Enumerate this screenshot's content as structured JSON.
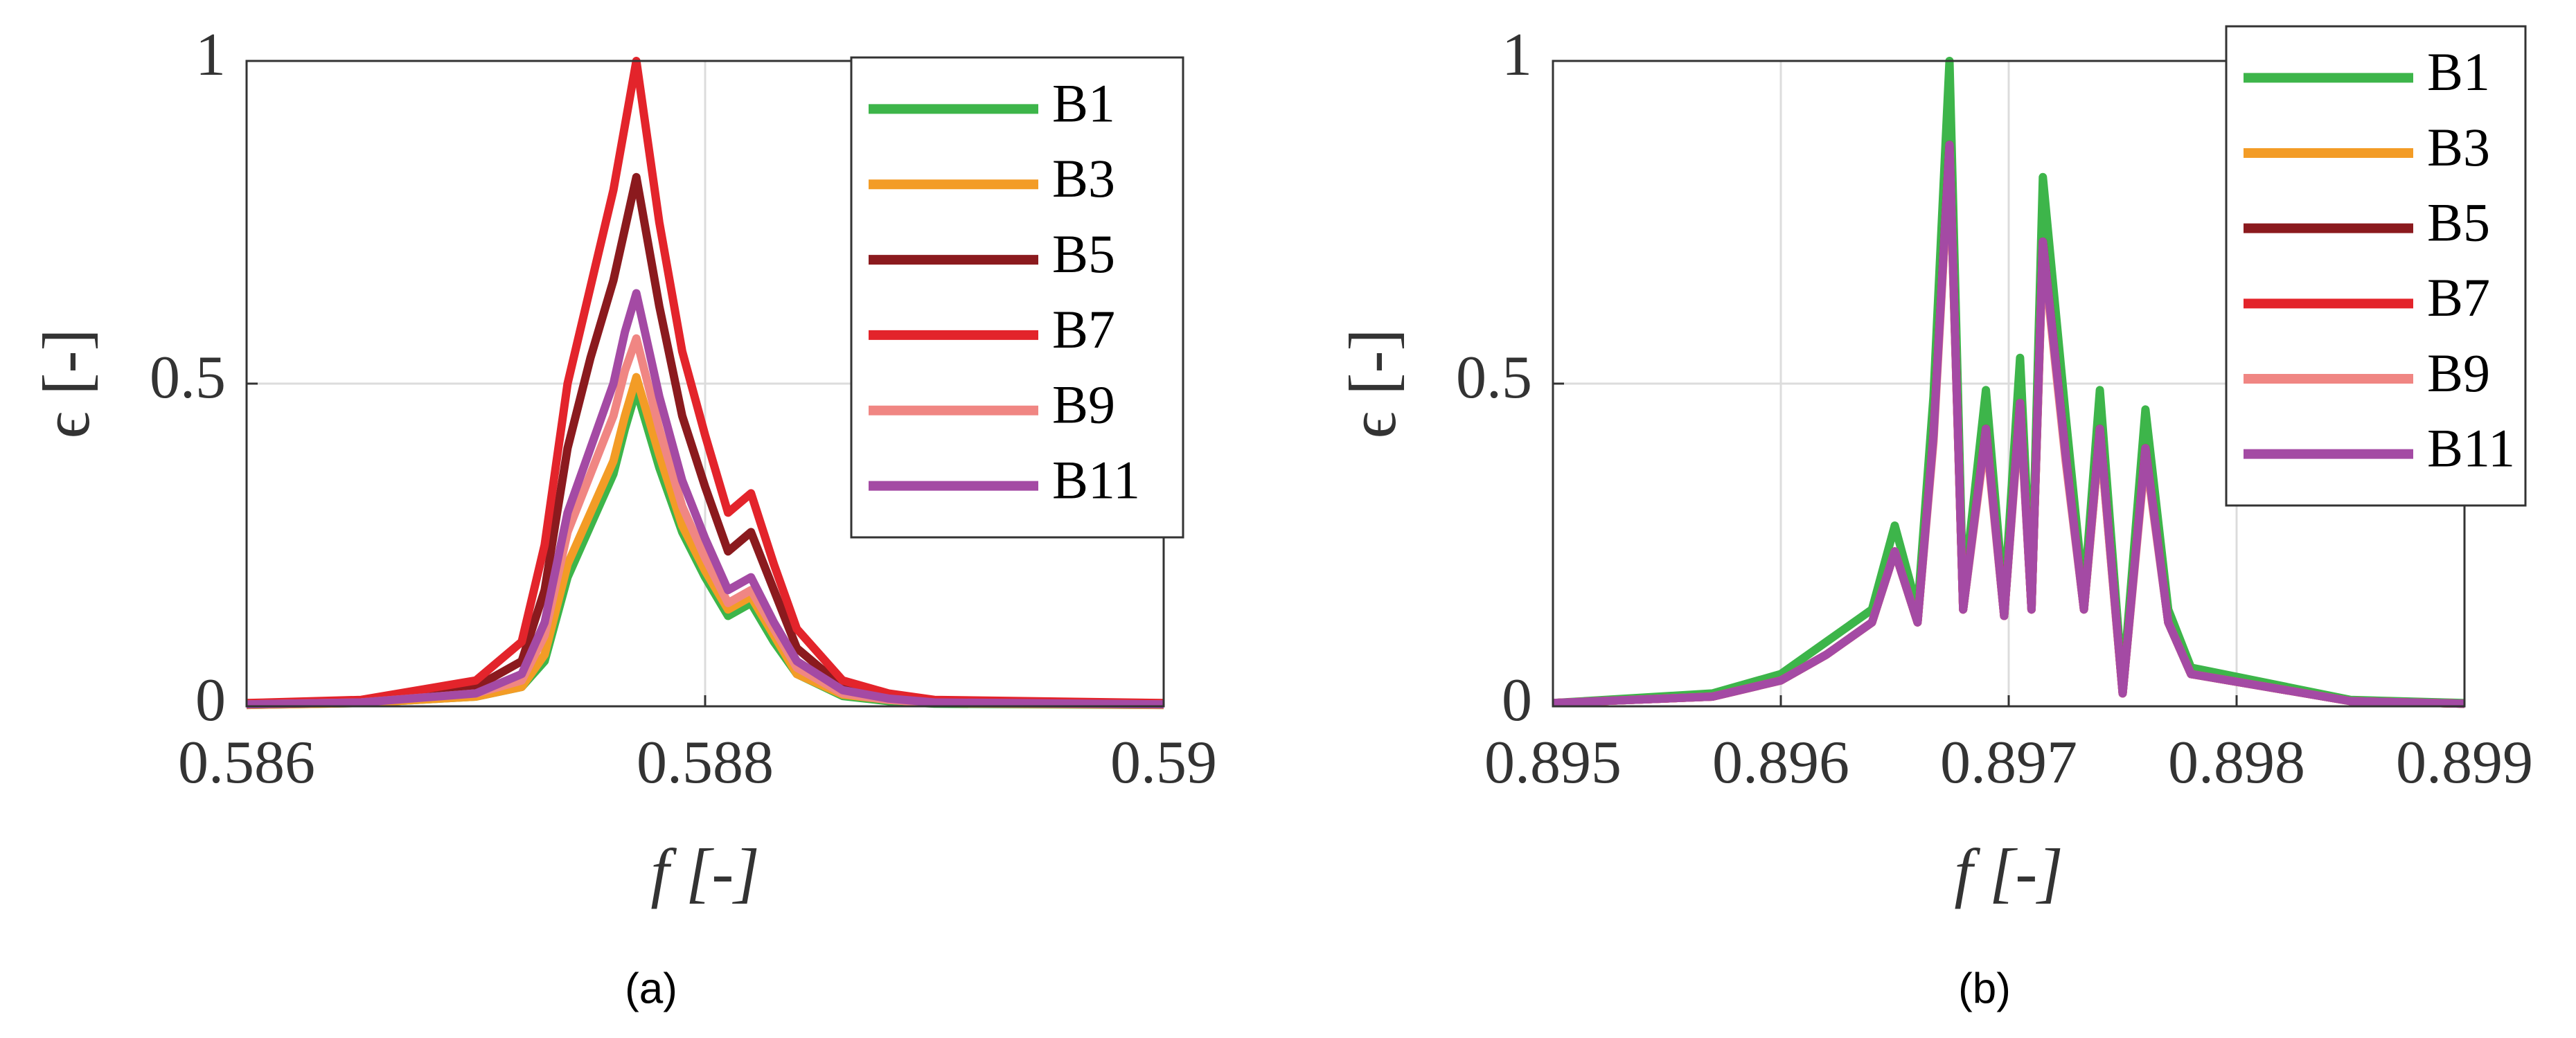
{
  "chart_data": [
    {
      "type": "line",
      "caption": "(a)",
      "xlabel": "f [-]",
      "ylabel": "ϵ [-]",
      "xlim": [
        0.586,
        0.59
      ],
      "xticks": [
        0.586,
        0.588,
        0.59
      ],
      "ylim": [
        0,
        1
      ],
      "yticks": [
        0,
        0.5,
        1
      ],
      "grid": true,
      "legend": "upper right",
      "x": [
        0.586,
        0.5865,
        0.587,
        0.5872,
        0.5873,
        0.5874,
        0.5875,
        0.5876,
        0.58765,
        0.5877,
        0.5878,
        0.5879,
        0.588,
        0.5881,
        0.5882,
        0.5883,
        0.5884,
        0.5886,
        0.5888,
        0.589,
        0.59
      ],
      "series": [
        {
          "name": "B1",
          "color": "#3db54a",
          "values": [
            0.002,
            0.005,
            0.015,
            0.03,
            0.07,
            0.2,
            0.28,
            0.36,
            0.43,
            0.49,
            0.37,
            0.27,
            0.2,
            0.14,
            0.16,
            0.1,
            0.05,
            0.016,
            0.008,
            0.004,
            0.002
          ]
        },
        {
          "name": "B3",
          "color": "#f39c26",
          "values": [
            0.002,
            0.005,
            0.015,
            0.03,
            0.08,
            0.22,
            0.3,
            0.38,
            0.45,
            0.51,
            0.39,
            0.28,
            0.21,
            0.15,
            0.17,
            0.11,
            0.05,
            0.018,
            0.01,
            0.005,
            0.002
          ]
        },
        {
          "name": "B5",
          "color": "#8b1a1e",
          "values": [
            0.004,
            0.008,
            0.03,
            0.07,
            0.18,
            0.4,
            0.54,
            0.66,
            0.74,
            0.82,
            0.62,
            0.45,
            0.34,
            0.24,
            0.27,
            0.18,
            0.09,
            0.03,
            0.015,
            0.008,
            0.004
          ]
        },
        {
          "name": "B7",
          "color": "#e3242b",
          "values": [
            0.005,
            0.01,
            0.04,
            0.1,
            0.25,
            0.5,
            0.65,
            0.8,
            0.9,
            1.0,
            0.75,
            0.55,
            0.42,
            0.3,
            0.33,
            0.22,
            0.12,
            0.04,
            0.02,
            0.01,
            0.005
          ]
        },
        {
          "name": "B9",
          "color": "#f08683",
          "values": [
            0.003,
            0.006,
            0.02,
            0.04,
            0.11,
            0.27,
            0.36,
            0.45,
            0.52,
            0.57,
            0.43,
            0.31,
            0.23,
            0.16,
            0.18,
            0.12,
            0.06,
            0.02,
            0.01,
            0.005,
            0.003
          ]
        },
        {
          "name": "B11",
          "color": "#a44aa4",
          "values": [
            0.003,
            0.006,
            0.02,
            0.05,
            0.13,
            0.3,
            0.4,
            0.5,
            0.58,
            0.64,
            0.48,
            0.35,
            0.26,
            0.18,
            0.2,
            0.13,
            0.07,
            0.025,
            0.012,
            0.006,
            0.003
          ]
        }
      ]
    },
    {
      "type": "line",
      "caption": "(b)",
      "xlabel": "f [-]",
      "ylabel": "ϵ [-]",
      "xlim": [
        0.895,
        0.899
      ],
      "xticks": [
        0.895,
        0.896,
        0.897,
        0.898,
        0.899
      ],
      "ylim": [
        0,
        1
      ],
      "yticks": [
        0,
        0.5,
        1
      ],
      "grid": true,
      "legend": "upper right",
      "x": [
        0.895,
        0.8957,
        0.896,
        0.8962,
        0.8964,
        0.8965,
        0.8966,
        0.89667,
        0.89674,
        0.8968,
        0.8969,
        0.89698,
        0.89705,
        0.8971,
        0.89715,
        0.89725,
        0.89733,
        0.8974,
        0.8975,
        0.8976,
        0.8977,
        0.8978,
        0.8985,
        0.899
      ],
      "series": [
        {
          "name": "B1",
          "color": "#3db54a",
          "values": [
            0.005,
            0.02,
            0.05,
            0.1,
            0.15,
            0.28,
            0.15,
            0.48,
            1.0,
            0.17,
            0.49,
            0.16,
            0.54,
            0.17,
            0.82,
            0.45,
            0.17,
            0.49,
            0.03,
            0.46,
            0.15,
            0.06,
            0.01,
            0.005
          ]
        },
        {
          "name": "B3",
          "color": "#f39c26",
          "values": [
            0.005,
            0.015,
            0.04,
            0.08,
            0.13,
            0.24,
            0.13,
            0.42,
            0.86,
            0.15,
            0.43,
            0.14,
            0.47,
            0.15,
            0.71,
            0.39,
            0.15,
            0.42,
            0.02,
            0.4,
            0.13,
            0.05,
            0.008,
            0.004
          ]
        },
        {
          "name": "B5",
          "color": "#8b1a1e",
          "values": [
            0.005,
            0.015,
            0.04,
            0.08,
            0.13,
            0.24,
            0.13,
            0.42,
            0.87,
            0.15,
            0.43,
            0.14,
            0.47,
            0.15,
            0.72,
            0.39,
            0.15,
            0.43,
            0.02,
            0.4,
            0.13,
            0.05,
            0.008,
            0.004
          ]
        },
        {
          "name": "B7",
          "color": "#e3242b",
          "values": [
            0.005,
            0.015,
            0.04,
            0.08,
            0.13,
            0.24,
            0.13,
            0.42,
            0.87,
            0.15,
            0.43,
            0.14,
            0.47,
            0.15,
            0.72,
            0.39,
            0.15,
            0.43,
            0.02,
            0.4,
            0.13,
            0.05,
            0.008,
            0.004
          ]
        },
        {
          "name": "B9",
          "color": "#f08683",
          "values": [
            0.005,
            0.015,
            0.04,
            0.08,
            0.13,
            0.24,
            0.13,
            0.41,
            0.86,
            0.15,
            0.42,
            0.14,
            0.46,
            0.15,
            0.71,
            0.38,
            0.15,
            0.42,
            0.02,
            0.39,
            0.13,
            0.05,
            0.008,
            0.004
          ]
        },
        {
          "name": "B11",
          "color": "#a44aa4",
          "values": [
            0.005,
            0.015,
            0.04,
            0.08,
            0.13,
            0.24,
            0.13,
            0.42,
            0.87,
            0.15,
            0.43,
            0.14,
            0.47,
            0.15,
            0.72,
            0.39,
            0.15,
            0.43,
            0.02,
            0.4,
            0.13,
            0.05,
            0.008,
            0.004
          ]
        }
      ]
    }
  ]
}
